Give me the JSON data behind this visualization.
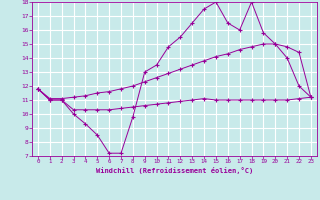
{
  "xlabel": "Windchill (Refroidissement éolien,°C)",
  "background_color": "#c8eaea",
  "grid_color": "#ffffff",
  "line_color": "#990099",
  "xlim": [
    -0.5,
    23.5
  ],
  "ylim": [
    7,
    18
  ],
  "xticks": [
    0,
    1,
    2,
    3,
    4,
    5,
    6,
    7,
    8,
    9,
    10,
    11,
    12,
    13,
    14,
    15,
    16,
    17,
    18,
    19,
    20,
    21,
    22,
    23
  ],
  "yticks": [
    7,
    8,
    9,
    10,
    11,
    12,
    13,
    14,
    15,
    16,
    17,
    18
  ],
  "line1_x": [
    0,
    1,
    2,
    3,
    4,
    5,
    6,
    7,
    8,
    9,
    10,
    11,
    12,
    13,
    14,
    15,
    16,
    17,
    18,
    19,
    20,
    21,
    22,
    23
  ],
  "line1_y": [
    11.8,
    11.0,
    11.0,
    10.0,
    9.3,
    8.5,
    7.2,
    7.2,
    9.8,
    13.0,
    13.5,
    14.8,
    15.5,
    16.5,
    17.5,
    18.0,
    16.5,
    16.0,
    18.0,
    15.8,
    15.0,
    14.0,
    12.0,
    11.2
  ],
  "line2_x": [
    0,
    1,
    2,
    3,
    4,
    5,
    6,
    7,
    8,
    9,
    10,
    11,
    12,
    13,
    14,
    15,
    16,
    17,
    18,
    19,
    20,
    21,
    22,
    23
  ],
  "line2_y": [
    11.8,
    11.1,
    11.1,
    11.2,
    11.3,
    11.5,
    11.6,
    11.8,
    12.0,
    12.3,
    12.6,
    12.9,
    13.2,
    13.5,
    13.8,
    14.1,
    14.3,
    14.6,
    14.8,
    15.0,
    15.0,
    14.8,
    14.4,
    11.2
  ],
  "line3_x": [
    0,
    1,
    2,
    3,
    4,
    5,
    6,
    7,
    8,
    9,
    10,
    11,
    12,
    13,
    14,
    15,
    16,
    17,
    18,
    19,
    20,
    21,
    22,
    23
  ],
  "line3_y": [
    11.8,
    11.0,
    11.0,
    10.3,
    10.3,
    10.3,
    10.3,
    10.4,
    10.5,
    10.6,
    10.7,
    10.8,
    10.9,
    11.0,
    11.1,
    11.0,
    11.0,
    11.0,
    11.0,
    11.0,
    11.0,
    11.0,
    11.1,
    11.2
  ]
}
